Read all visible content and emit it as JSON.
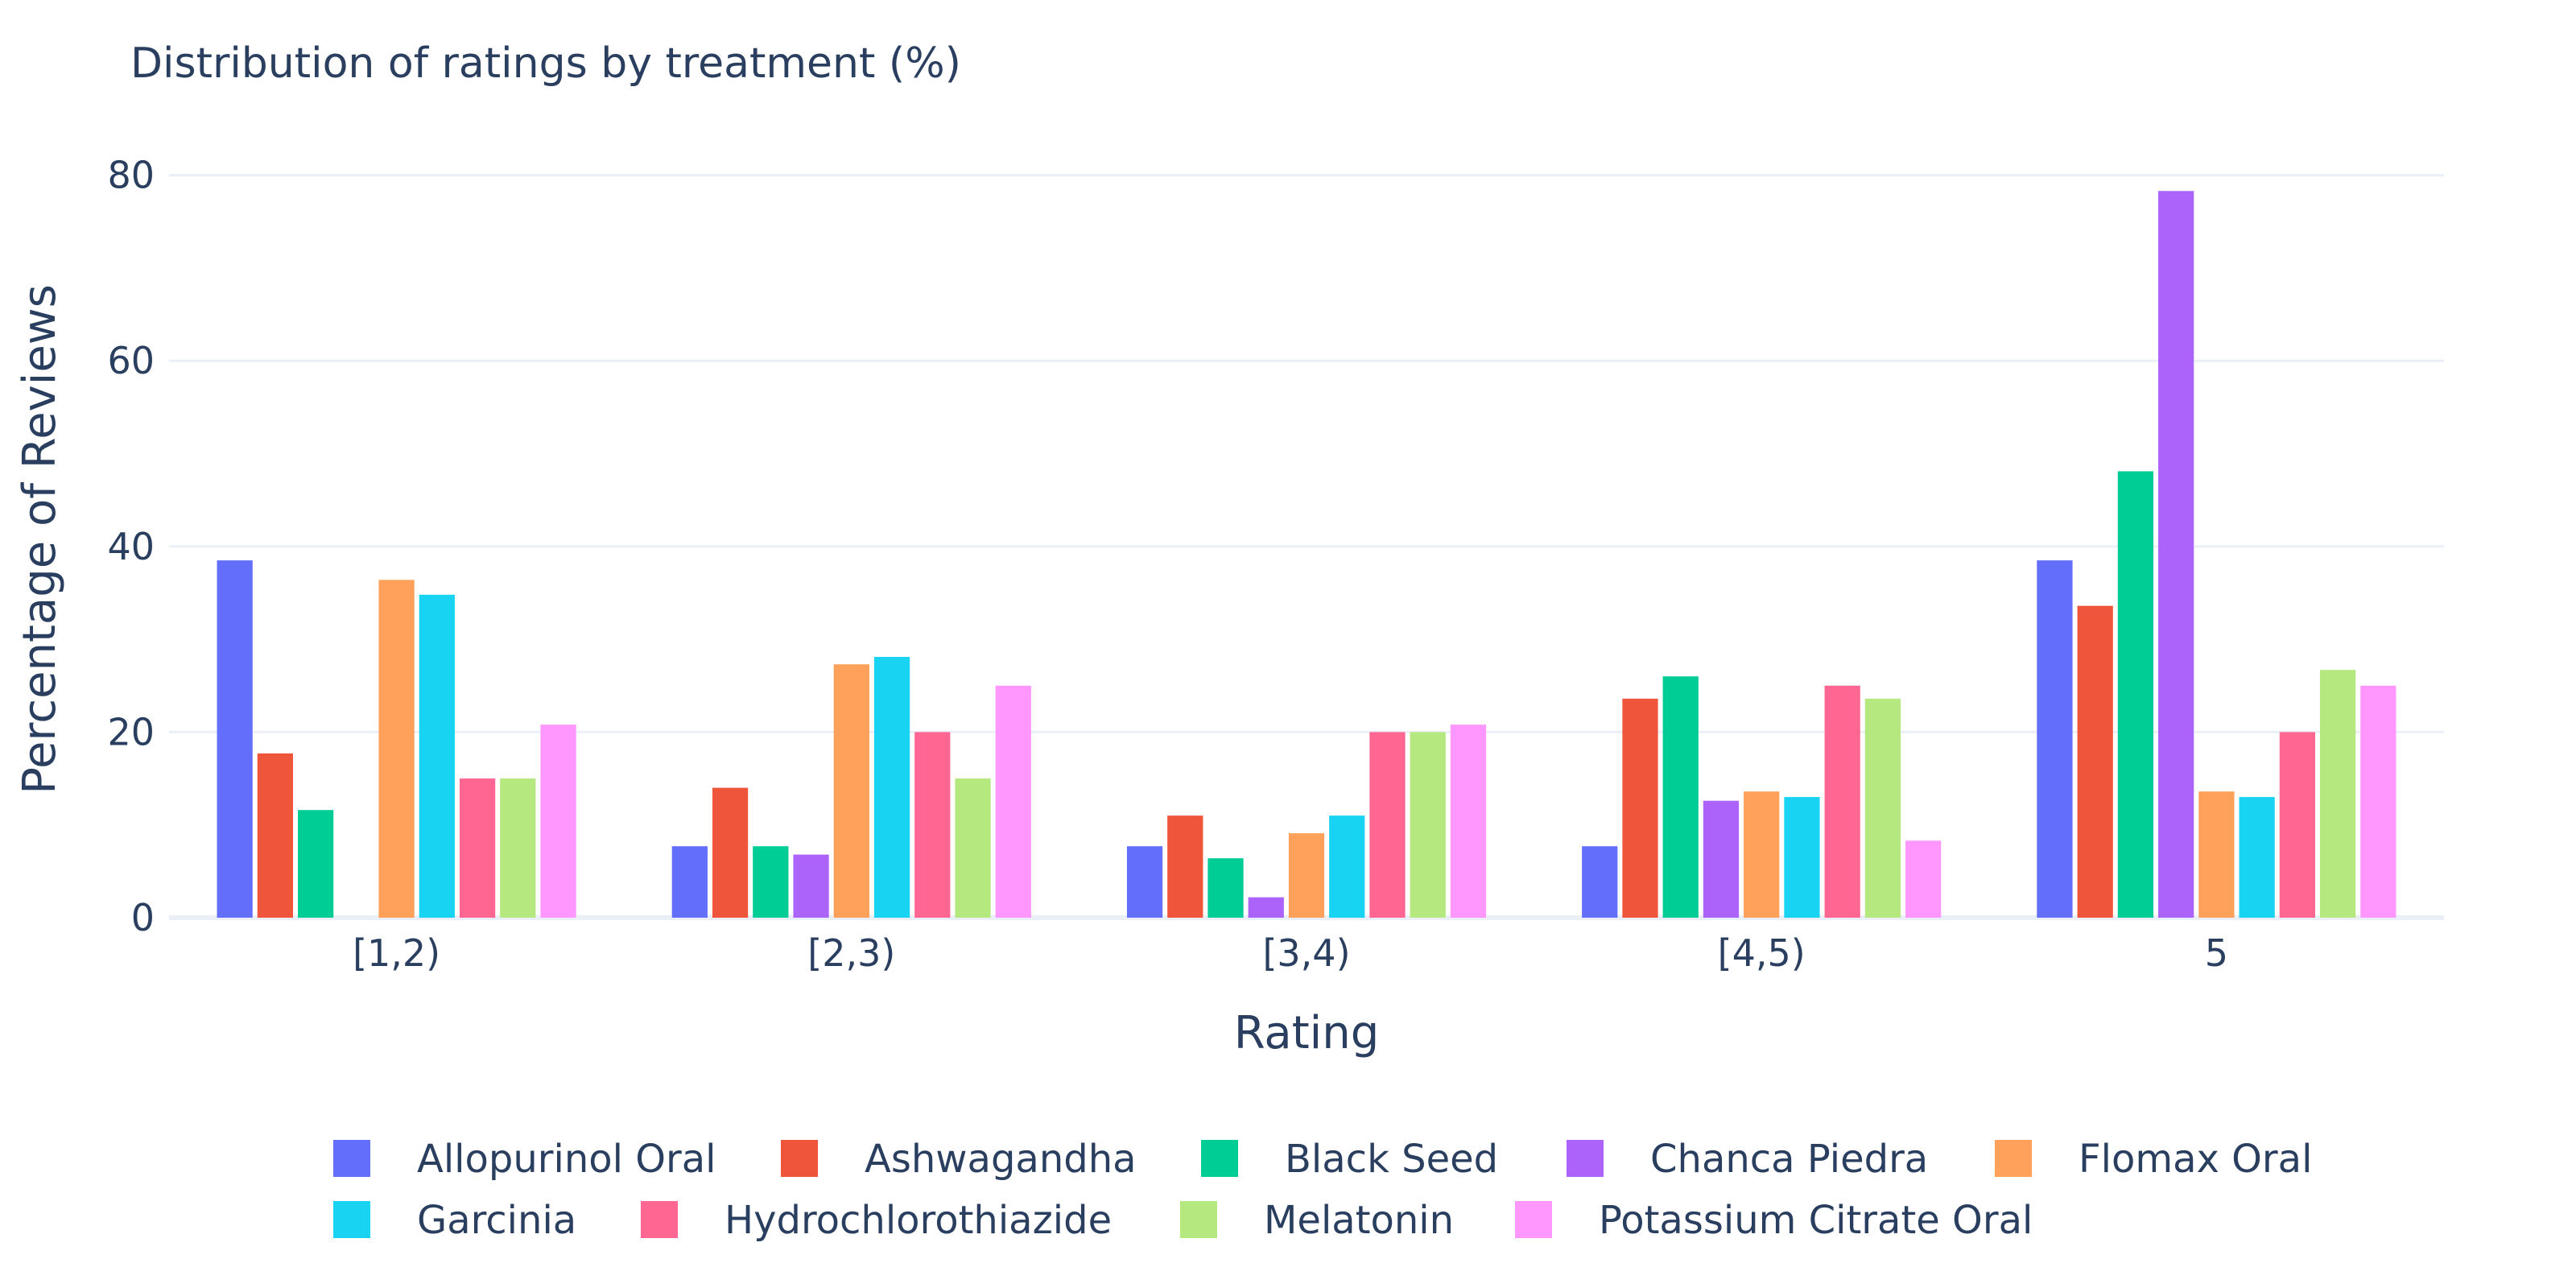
{
  "chart_data": {
    "type": "bar",
    "title": "Distribution of ratings by treatment (%)",
    "xlabel": "Rating",
    "ylabel": "Percentage of Reviews",
    "categories": [
      "[1,2)",
      "[2,3)",
      "[3,4)",
      "[4,5)",
      "5"
    ],
    "ylim": [
      0,
      85
    ],
    "yticks": [
      0,
      20,
      40,
      60,
      80
    ],
    "grid": true,
    "legend_position": "bottom",
    "series": [
      {
        "name": "Allopurinol Oral",
        "color": "#636efa",
        "values": [
          38.5,
          7.7,
          7.7,
          7.7,
          38.5
        ]
      },
      {
        "name": "Ashwagandha",
        "color": "#ef553b",
        "values": [
          17.7,
          14.0,
          11.0,
          23.6,
          33.6
        ]
      },
      {
        "name": "Black Seed",
        "color": "#00cc96",
        "values": [
          11.6,
          7.7,
          6.4,
          26.0,
          48.1
        ]
      },
      {
        "name": "Chanca Piedra",
        "color": "#ab63fa",
        "values": [
          0,
          6.8,
          2.2,
          12.6,
          78.3
        ]
      },
      {
        "name": "Flomax Oral",
        "color": "#ffa15a",
        "values": [
          36.4,
          27.3,
          9.1,
          13.6,
          13.6
        ]
      },
      {
        "name": "Garcinia",
        "color": "#19d3f3",
        "values": [
          34.8,
          28.1,
          11.0,
          13.0,
          13.0
        ]
      },
      {
        "name": "Hydrochlorothiazide",
        "color": "#ff6692",
        "values": [
          15.0,
          20.0,
          20.0,
          25.0,
          20.0
        ]
      },
      {
        "name": "Melatonin",
        "color": "#b6e880",
        "values": [
          15.0,
          15.0,
          20.0,
          23.6,
          26.7
        ]
      },
      {
        "name": "Potassium Citrate Oral",
        "color": "#ff97ff",
        "values": [
          20.8,
          25.0,
          20.8,
          8.3,
          25.0
        ]
      }
    ]
  }
}
